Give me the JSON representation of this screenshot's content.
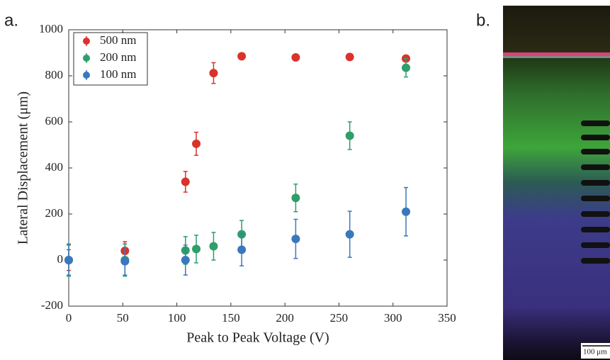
{
  "panel_labels": [
    "a.",
    "b."
  ],
  "image": {
    "scale_bar": "100 μm"
  },
  "chart_data": {
    "type": "scatter",
    "xlabel": "Peak to Peak Voltage (V)",
    "ylabel": "Lateral Displacement (μm)",
    "xlim": [
      0,
      350
    ],
    "xticks": [
      0,
      50,
      100,
      150,
      200,
      250,
      300,
      350
    ],
    "ylim": [
      -200,
      1000
    ],
    "yticks": [
      -200,
      0,
      200,
      400,
      600,
      800,
      1000
    ],
    "grid": false,
    "legend": "upper left",
    "series": [
      {
        "name": "500 nm",
        "color": "#d9332b",
        "x": [
          0,
          52,
          108,
          118,
          134,
          160,
          210,
          260,
          312
        ],
        "values": [
          0,
          40,
          340,
          505,
          812,
          885,
          880,
          882,
          875
        ],
        "errors": [
          45,
          40,
          45,
          50,
          45,
          8,
          8,
          8,
          10
        ]
      },
      {
        "name": "200 nm",
        "color": "#2e9e6a",
        "x": [
          0,
          52,
          108,
          118,
          134,
          160,
          210,
          260,
          312
        ],
        "values": [
          0,
          0,
          42,
          48,
          60,
          112,
          270,
          540,
          835
        ],
        "errors": [
          70,
          70,
          60,
          60,
          60,
          60,
          60,
          60,
          40
        ]
      },
      {
        "name": "100 nm",
        "color": "#3a78bd",
        "x": [
          0,
          52,
          108,
          160,
          210,
          260,
          312
        ],
        "values": [
          0,
          -5,
          0,
          45,
          92,
          112,
          210
        ],
        "errors": [
          65,
          60,
          65,
          70,
          85,
          100,
          105
        ]
      }
    ]
  }
}
